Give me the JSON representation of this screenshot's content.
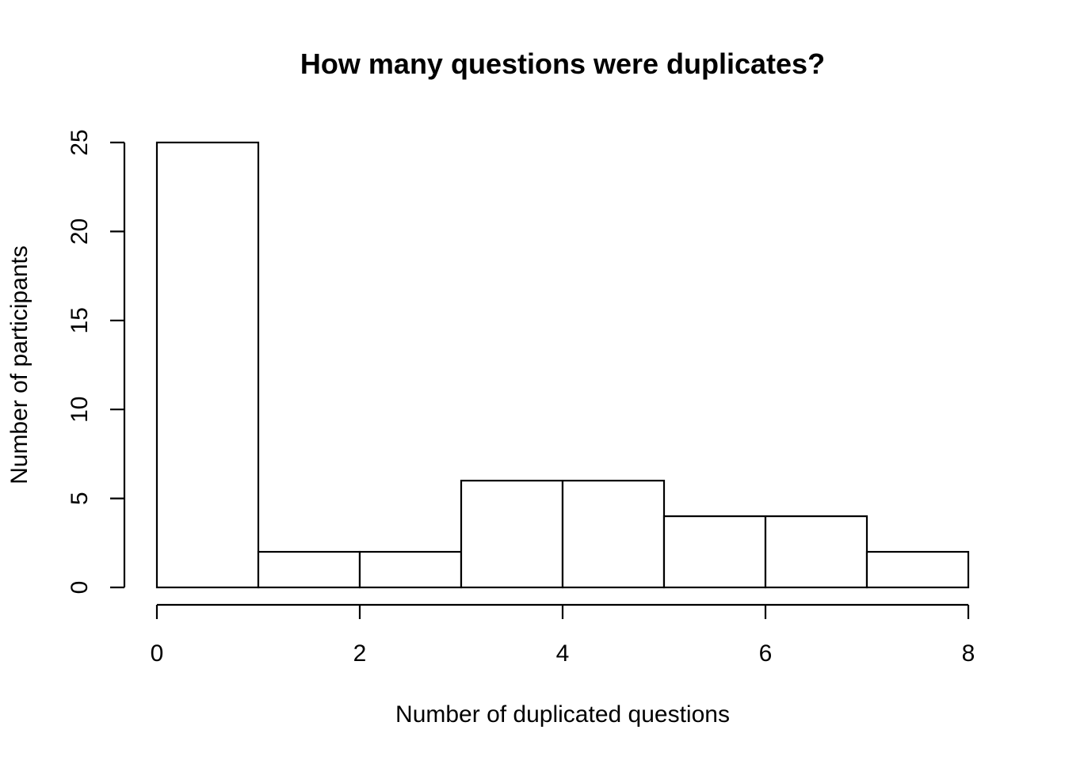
{
  "chart_data": {
    "type": "bar",
    "title": "How many questions were duplicates?",
    "xlabel": "Number of duplicated questions",
    "ylabel": "Number of participants",
    "bins": [
      {
        "from": 0,
        "to": 1,
        "count": 25
      },
      {
        "from": 1,
        "to": 2,
        "count": 2
      },
      {
        "from": 2,
        "to": 3,
        "count": 2
      },
      {
        "from": 3,
        "to": 4,
        "count": 6
      },
      {
        "from": 4,
        "to": 5,
        "count": 6
      },
      {
        "from": 5,
        "to": 6,
        "count": 4
      },
      {
        "from": 6,
        "to": 7,
        "count": 4
      },
      {
        "from": 7,
        "to": 8,
        "count": 2
      }
    ],
    "xlim": [
      0,
      8
    ],
    "ylim": [
      0,
      25
    ],
    "x_ticks": [
      "0",
      "2",
      "4",
      "6",
      "8"
    ],
    "y_ticks": [
      "0",
      "5",
      "10",
      "15",
      "20",
      "25"
    ],
    "grid": false,
    "legend": "none"
  }
}
